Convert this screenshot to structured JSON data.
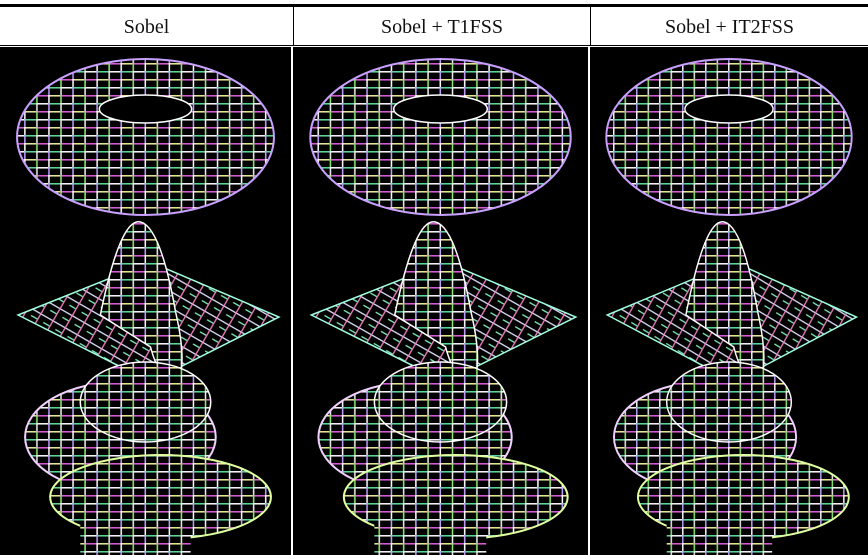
{
  "table": {
    "headers": [
      "Sobel",
      "Sobel + T1FSS",
      "Sobel + IT2FSS"
    ]
  }
}
